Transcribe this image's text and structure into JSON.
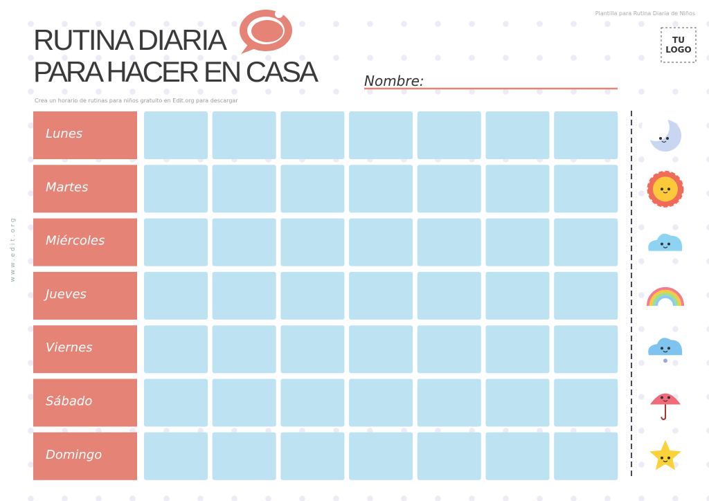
{
  "header": {
    "title_line1": "RUTINA DIARIA",
    "title_line2": "PARA HACER EN CASA",
    "subtitle": "Crea un horario de rutinas para niños gratuito en Edit.org para descargar",
    "caption": "Plantilla para Rutina Diaria de Niños",
    "logo_line1": "TU",
    "logo_line2": "LOGO",
    "name_label": "Nombre:"
  },
  "side_text": "www.edit.org",
  "days": [
    "Lunes",
    "Martes",
    "Miércoles",
    "Jueves",
    "Viernes",
    "Sábado",
    "Domingo"
  ]
}
